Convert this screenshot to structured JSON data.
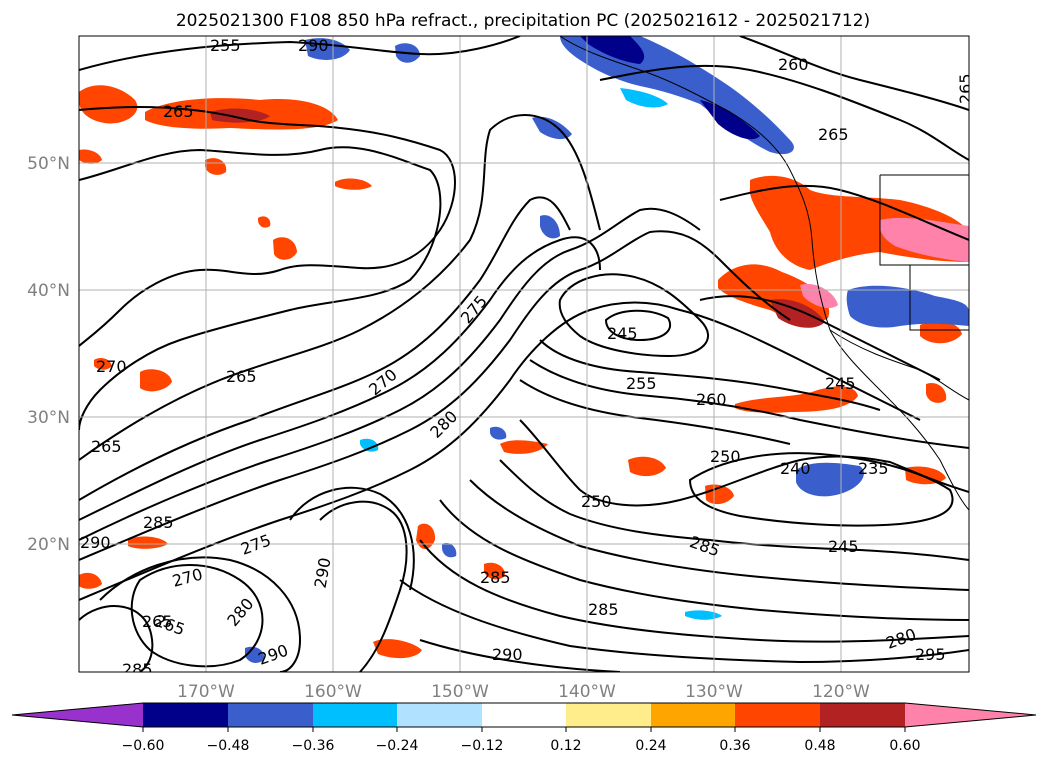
{
  "title": "2025021300 F108 850 hPa refract., precipitation PC (2025021612 - 2025021712)",
  "lat_labels": [
    "50°N",
    "40°N",
    "30°N",
    "20°N"
  ],
  "lon_labels": [
    "170°W",
    "160°W",
    "150°W",
    "140°W",
    "130°W",
    "120°W"
  ],
  "colorbar": {
    "ticks": [
      "−0.60",
      "−0.48",
      "−0.36",
      "−0.24",
      "−0.12",
      "0.12",
      "0.24",
      "0.36",
      "0.48",
      "0.60"
    ],
    "colors": [
      "#9932cc",
      "#00008b",
      "#3a5fcd",
      "#00bfff",
      "#b0e2ff",
      "#ffffff",
      "#ffec8b",
      "#ffa500",
      "#ff4500",
      "#b22222",
      "#ff82ab"
    ]
  },
  "contour_labels": [
    "255",
    "290",
    "260",
    "265",
    "265",
    "265",
    "265",
    "270",
    "275",
    "245",
    "270",
    "265",
    "255",
    "260",
    "245",
    "265",
    "280",
    "250",
    "240",
    "235",
    "250",
    "285",
    "290",
    "275",
    "285",
    "270",
    "290",
    "245",
    "265",
    "280",
    "285",
    "285",
    "290",
    "290",
    "280",
    "295",
    "285"
  ],
  "map_colors": {
    "contour": "#000000",
    "coast": "#000000",
    "grid": "#b0b0b0",
    "frame": "#000000"
  }
}
